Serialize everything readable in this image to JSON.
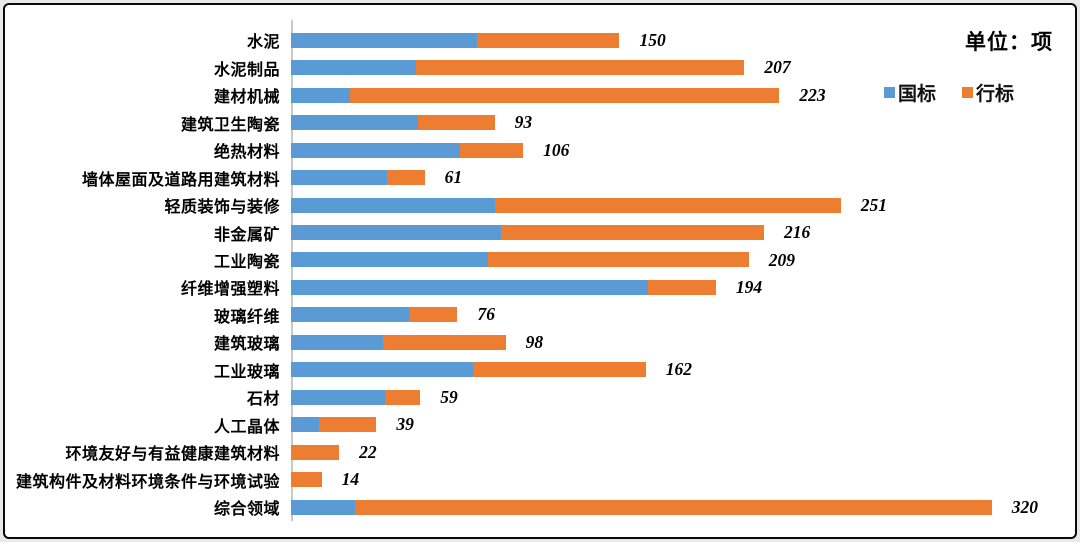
{
  "unit_label": "单位：项",
  "legend": [
    {
      "label": "国标",
      "color": "#5B9BD5"
    },
    {
      "label": "行标",
      "color": "#ED7D31"
    }
  ],
  "chart_data": {
    "type": "bar",
    "orientation": "horizontal",
    "stacked": true,
    "title": "",
    "xlabel": "",
    "ylabel": "",
    "xlim": [
      0,
      350
    ],
    "grid": false,
    "legend_position": "top-right",
    "unit_note": "单位：项",
    "categories": [
      "水泥",
      "水泥制品",
      "建材机械",
      "建筑卫生陶瓷",
      "绝热材料",
      "墙体屋面及道路用建筑材料",
      "轻质装饰与装修",
      "非金属矿",
      "工业陶瓷",
      "纤维增强塑料",
      "玻璃纤维",
      "建筑玻璃",
      "工业玻璃",
      "石材",
      "人工晶体",
      "环境友好与有益健康建筑材料",
      "建筑构件及材料环境条件与环境试验",
      "综合领域"
    ],
    "series": [
      {
        "name": "国标",
        "color": "#5B9BD5",
        "values": [
          85,
          57,
          27,
          58,
          77,
          44,
          93,
          96,
          90,
          163,
          54,
          42,
          83,
          43,
          13,
          0,
          0,
          29
        ]
      },
      {
        "name": "行标",
        "color": "#ED7D31",
        "values": [
          65,
          150,
          196,
          35,
          29,
          17,
          158,
          120,
          119,
          31,
          22,
          56,
          79,
          16,
          26,
          22,
          14,
          291
        ]
      }
    ],
    "totals": [
      150,
      207,
      223,
      93,
      106,
      61,
      251,
      216,
      209,
      194,
      76,
      98,
      162,
      59,
      39,
      22,
      14,
      320
    ]
  }
}
